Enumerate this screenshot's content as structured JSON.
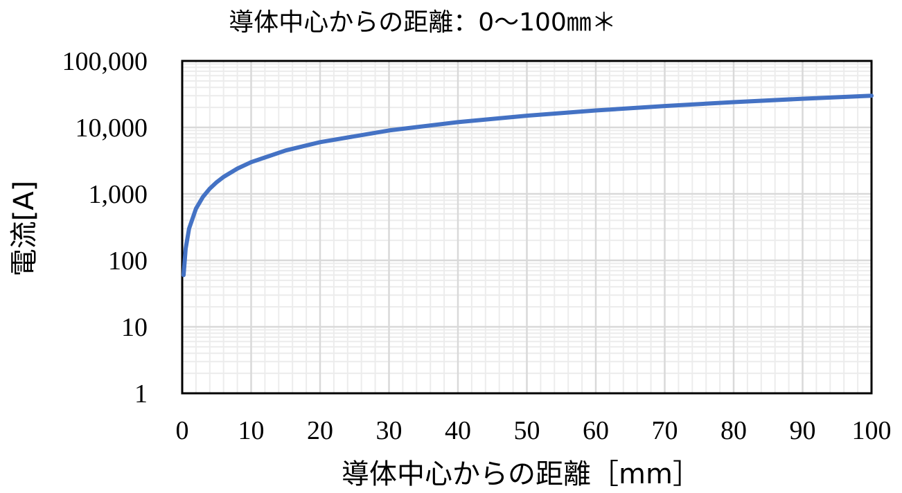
{
  "chart_data": {
    "type": "line",
    "title": "導体中心からの距離：0～100㎜＊",
    "xlabel": "導体中心からの距離［mm］",
    "ylabel": "電流[A]",
    "x_scale": "linear",
    "y_scale": "log",
    "xlim": [
      0,
      100
    ],
    "ylim": [
      1,
      100000
    ],
    "x_ticks": [
      0,
      10,
      20,
      30,
      40,
      50,
      60,
      70,
      80,
      90,
      100
    ],
    "x_tick_labels": [
      "0",
      "10",
      "20",
      "30",
      "40",
      "50",
      "60",
      "70",
      "80",
      "90",
      "100"
    ],
    "y_ticks": [
      1,
      10,
      100,
      1000,
      10000,
      100000
    ],
    "y_tick_labels": [
      "1",
      "10",
      "100",
      "1,000",
      "10,000",
      "100,000"
    ],
    "grid": true,
    "legend": "none",
    "series": [
      {
        "color": "#4472C4",
        "x": [
          0.2,
          0.5,
          1,
          2,
          3,
          4,
          5,
          6,
          8,
          10,
          15,
          20,
          30,
          40,
          50,
          60,
          70,
          80,
          90,
          100
        ],
        "y": [
          60,
          150,
          300,
          600,
          900,
          1200,
          1500,
          1800,
          2400,
          3000,
          4500,
          6000,
          9000,
          12000,
          15000,
          18000,
          21000,
          24000,
          27000,
          30000
        ]
      }
    ]
  }
}
